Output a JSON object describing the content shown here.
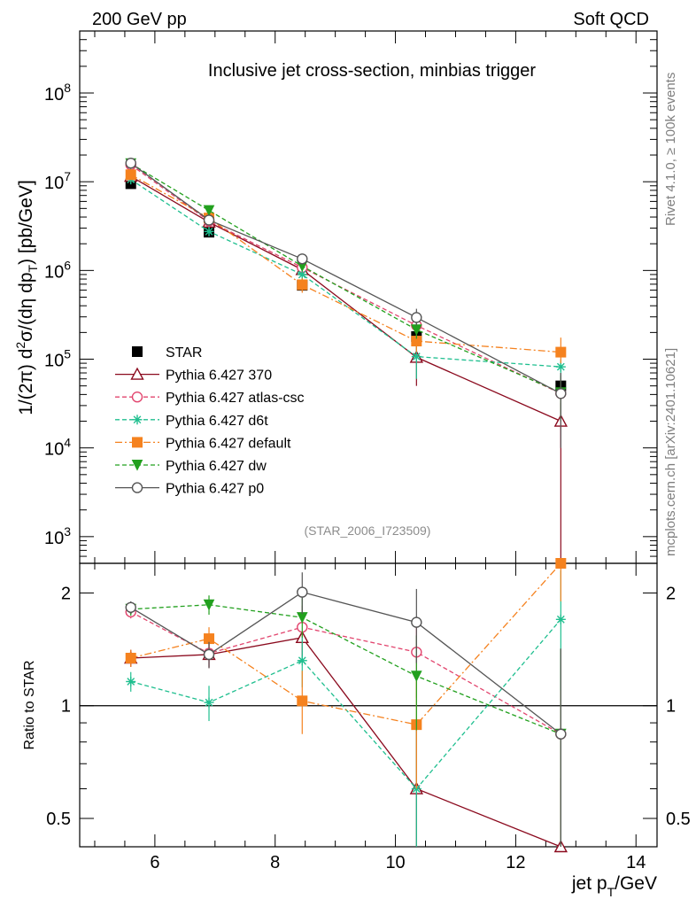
{
  "header": {
    "left": "200 GeV pp",
    "right": "Soft QCD"
  },
  "side_labels": {
    "rivet": "Rivet 4.1.0, ≥ 100k events",
    "mcplots": "mcplots.cern.ch [arXiv:2401.10621]"
  },
  "chart_data": [
    {
      "panel": "main",
      "type": "line",
      "title": "Inclusive jet cross-section, minbias trigger",
      "analysis_id": "(STAR_2006_I723509)",
      "ylabel_parts": [
        "1/(2π)  d",
        "2",
        "σ/(dη dp",
        "T",
        ") [pb/GeV]"
      ],
      "yscale": "log",
      "ylim": [
        500,
        500000000.0
      ],
      "yticks": [
        {
          "value": 1000,
          "base": "10",
          "exp": "3"
        },
        {
          "value": 10000,
          "base": "10",
          "exp": "4"
        },
        {
          "value": 100000,
          "base": "10",
          "exp": "5"
        },
        {
          "value": 1000000,
          "base": "10",
          "exp": "6"
        },
        {
          "value": 10000000,
          "base": "10",
          "exp": "7"
        },
        {
          "value": 100000000,
          "base": "10",
          "exp": "8"
        }
      ],
      "xlim": [
        4.75,
        14.35
      ],
      "legend_position": "lower-left",
      "series": [
        {
          "name": "STAR",
          "kind": "data",
          "color": "#000000",
          "marker": "square-filled",
          "x": [
            5.6,
            6.9,
            8.45,
            10.35,
            12.75
          ],
          "y": [
            9500000.0,
            2700000.0,
            680000.0,
            180000.0,
            50000.0
          ],
          "ylo": [
            8500000.0,
            2400000.0,
            590000.0,
            150000.0,
            43000.0
          ],
          "yhi": [
            10600000.0,
            3000000.0,
            770000.0,
            210000.0,
            57000.0
          ]
        },
        {
          "name": "Pythia 6.427 370",
          "color": "#8b0a1e",
          "marker": "triangle-open",
          "dash": "",
          "x": [
            5.6,
            6.9,
            8.45,
            10.35,
            12.75
          ],
          "y": [
            11500000.0,
            3500000.0,
            1020000.0,
            105000.0,
            20000.0
          ],
          "ylo": [
            10500000.0,
            3200000.0,
            900000.0,
            50000.0,
            1.0
          ],
          "yhi": [
            12500000.0,
            3800000.0,
            1150000.0,
            170000.0,
            32000.0
          ]
        },
        {
          "name": "Pythia 6.427 atlas-csc",
          "color": "#e2456e",
          "marker": "circle-open",
          "dash": "5,3",
          "x": [
            5.6,
            6.9,
            8.45,
            10.35,
            12.75
          ],
          "y": [
            15500000.0,
            3600000.0,
            1080000.0,
            240000.0,
            41000.0
          ],
          "ylo": [
            14500000.0,
            3300000.0,
            950000.0,
            200000.0,
            10000.0
          ],
          "yhi": [
            16500000.0,
            3900000.0,
            1200000.0,
            280000.0,
            70000.0
          ]
        },
        {
          "name": "Pythia 6.427 d6t",
          "color": "#1fbf8f",
          "marker": "star",
          "dash": "5,3",
          "x": [
            5.6,
            6.9,
            8.45,
            10.35,
            12.75
          ],
          "y": [
            10600000.0,
            2750000.0,
            900000.0,
            107000.0,
            82000.0
          ],
          "ylo": [
            9800000.0,
            2500000.0,
            790000.0,
            60000.0,
            60000.0
          ],
          "yhi": [
            11400000.0,
            3000000.0,
            1010000.0,
            150000.0,
            100000.0
          ]
        },
        {
          "name": "Pythia 6.427 default",
          "color": "#f5821f",
          "marker": "square-filled",
          "dash": "8,3,2,3",
          "x": [
            5.6,
            6.9,
            8.45,
            10.35,
            12.75
          ],
          "y": [
            12000000.0,
            3900000.0,
            690000.0,
            160000.0,
            120000.0
          ],
          "ylo": [
            11000000.0,
            3600000.0,
            560000.0,
            120000.0,
            90000.0
          ],
          "yhi": [
            13000000.0,
            4200000.0,
            820000.0,
            200000.0,
            175000.0
          ]
        },
        {
          "name": "Pythia 6.427 dw",
          "color": "#22a01e",
          "marker": "triangle-down-filled",
          "dash": "5,3",
          "x": [
            5.6,
            6.9,
            8.45,
            10.35,
            12.75
          ],
          "y": [
            16000000.0,
            4750000.0,
            1120000.0,
            215000.0,
            42000.0
          ],
          "ylo": [
            15000000.0,
            4400000.0,
            990000.0,
            170000.0,
            20000.0
          ],
          "yhi": [
            17000000.0,
            5100000.0,
            1250000.0,
            260000.0,
            65000.0
          ]
        },
        {
          "name": "Pythia 6.427 p0",
          "color": "#555555",
          "marker": "circle-open",
          "dash": "",
          "x": [
            5.6,
            6.9,
            8.45,
            10.35,
            12.75
          ],
          "y": [
            16200000.0,
            3700000.0,
            1350000.0,
            295000.0,
            41000.0
          ],
          "ylo": [
            15200000.0,
            3400000.0,
            1180000.0,
            240000.0,
            10000.0
          ],
          "yhi": [
            17200000.0,
            4000000.0,
            1520000.0,
            370000.0,
            70000.0
          ]
        }
      ]
    },
    {
      "panel": "ratio",
      "type": "line",
      "ylabel": "Ratio to STAR",
      "yscale": "log",
      "ylim": [
        0.42,
        2.4
      ],
      "yticks": [
        {
          "value": 0.5,
          "label": "0.5"
        },
        {
          "value": 1,
          "label": "1"
        },
        {
          "value": 2,
          "label": "2"
        }
      ],
      "xlabel_parts": [
        "jet p",
        "T",
        "/GeV"
      ],
      "xlim": [
        4.75,
        14.35
      ],
      "xticks": [
        6,
        8,
        10,
        12,
        14
      ],
      "reference_line": 1,
      "series": [
        {
          "name": "Pythia 6.427 370",
          "x": [
            5.6,
            6.9,
            8.45,
            10.35,
            12.75
          ],
          "y": [
            1.34,
            1.37,
            1.52,
            0.6,
            0.4
          ],
          "ylo": [
            1.27,
            1.26,
            1.3,
            0.3,
            0.1
          ],
          "yhi": [
            1.41,
            1.48,
            1.76,
            0.92,
            0.64
          ]
        },
        {
          "name": "Pythia 6.427 atlas-csc",
          "x": [
            5.6,
            6.9,
            8.45,
            10.35,
            12.75
          ],
          "y": [
            1.78,
            1.38,
            1.62,
            1.39,
            0.84
          ],
          "ylo": [
            1.71,
            1.27,
            1.4,
            1.05,
            0.25
          ],
          "yhi": [
            1.85,
            1.49,
            1.85,
            1.73,
            1.42
          ]
        },
        {
          "name": "Pythia 6.427 d6t",
          "x": [
            5.6,
            6.9,
            8.45,
            10.35,
            12.75
          ],
          "y": [
            1.16,
            1.02,
            1.32,
            0.6,
            1.7
          ],
          "ylo": [
            1.09,
            0.91,
            1.12,
            0.3,
            1.1
          ],
          "yhi": [
            1.23,
            1.13,
            1.53,
            0.92,
            2.3
          ]
        },
        {
          "name": "Pythia 6.427 default",
          "x": [
            5.6,
            6.9,
            8.45,
            10.35,
            12.75
          ],
          "y": [
            1.34,
            1.51,
            1.03,
            0.89,
            2.4
          ],
          "ylo": [
            1.27,
            1.4,
            0.84,
            0.6,
            1.9
          ],
          "yhi": [
            1.41,
            1.62,
            1.24,
            1.18,
            2.4
          ]
        },
        {
          "name": "Pythia 6.427 dw",
          "x": [
            5.6,
            6.9,
            8.45,
            10.35,
            12.75
          ],
          "y": [
            1.81,
            1.86,
            1.72,
            1.2,
            0.84
          ],
          "ylo": [
            1.74,
            1.75,
            1.52,
            0.86,
            0.25
          ],
          "yhi": [
            1.88,
            1.97,
            1.94,
            1.54,
            1.42
          ]
        },
        {
          "name": "Pythia 6.427 p0",
          "x": [
            5.6,
            6.9,
            8.45,
            10.35,
            12.75
          ],
          "y": [
            1.83,
            1.37,
            2.01,
            1.67,
            0.84
          ],
          "ylo": [
            1.76,
            1.26,
            1.76,
            1.3,
            0.25
          ],
          "yhi": [
            1.9,
            1.48,
            2.27,
            2.05,
            1.42
          ]
        }
      ]
    }
  ]
}
